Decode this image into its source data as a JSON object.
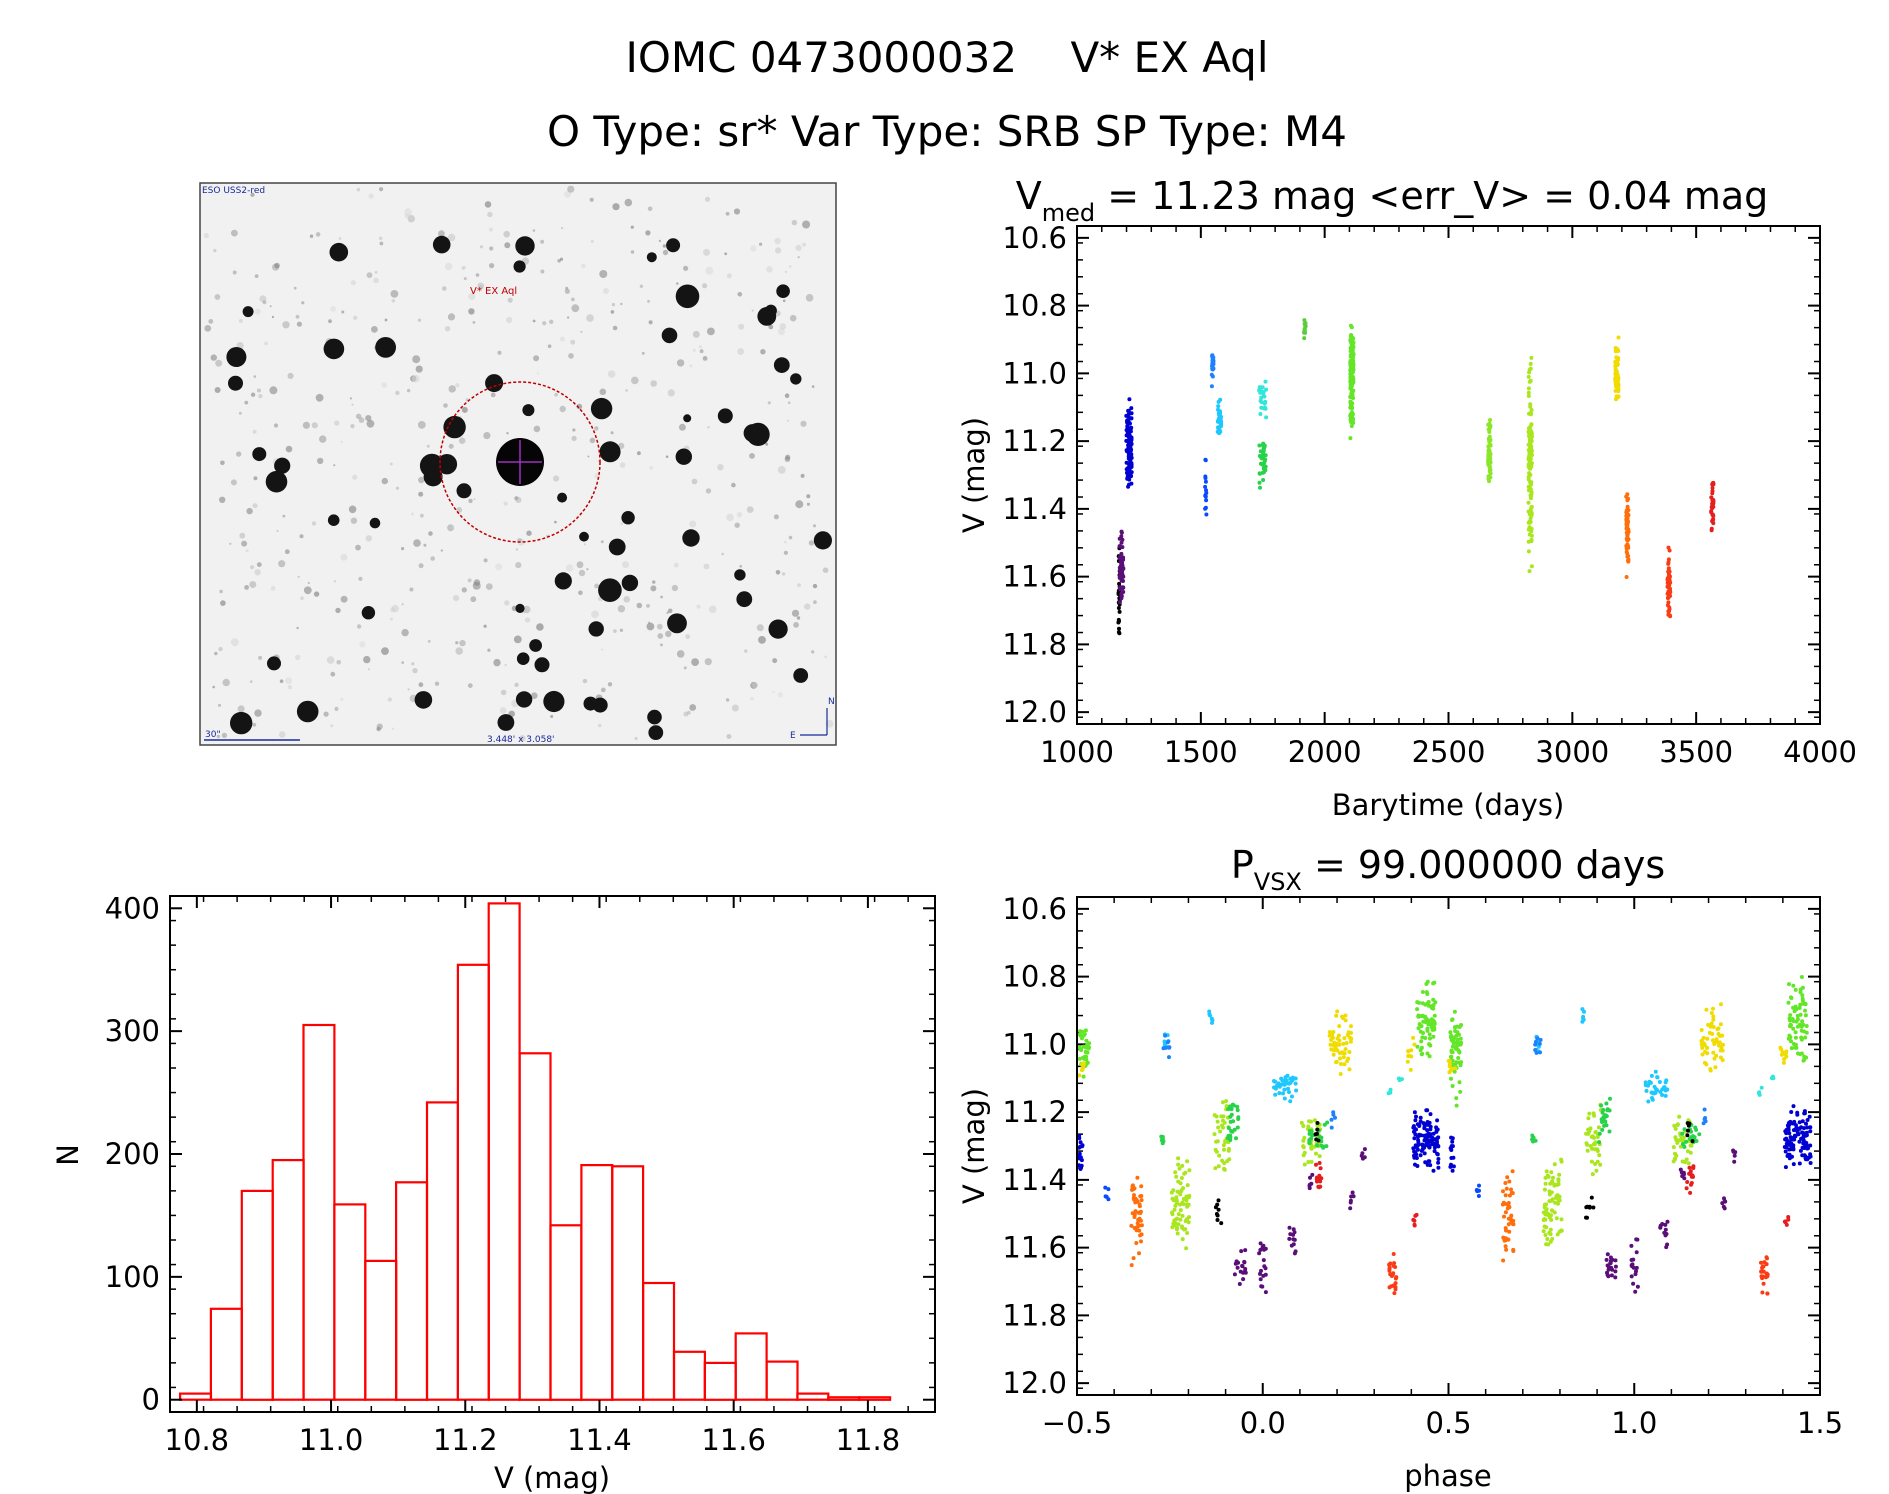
{
  "header": {
    "line1": "IOMC 0473000032    V* EX Aql",
    "line2": "O Type: sr*  Var Type: SRB  SP Type: M4"
  },
  "sky_image": {
    "survey": "ESO USS2-red",
    "target_label": "V* EX Aql",
    "scale_label": "30\"",
    "fov_label": "3.448' x 3.058'",
    "north": "N",
    "east": "E"
  },
  "chart_data": [
    {
      "type": "scatter",
      "id": "light-curve",
      "title_main": "V",
      "title_sub": "med",
      "title_rest": " = 11.23 mag <err_V> = 0.04 mag",
      "xlabel": "Barytime (days)",
      "ylabel": "V (mag)",
      "xlim": [
        1000,
        4000
      ],
      "ylim": [
        12.0,
        10.6
      ],
      "xticks": [
        "1000",
        "1500",
        "2000",
        "2500",
        "3000",
        "3500",
        "4000"
      ],
      "yticks": [
        "10.6",
        "10.8",
        "11.0",
        "11.2",
        "11.4",
        "11.6",
        "11.8",
        "12.0"
      ],
      "series": [
        {
          "name": "black",
          "color": "#000000",
          "x": 1170,
          "width": 6,
          "ymin": 11.45,
          "ymax": 11.84,
          "n": 25
        },
        {
          "name": "purple",
          "color": "#5a0f78",
          "x": 1180,
          "width": 16,
          "ymin": 11.45,
          "ymax": 11.72,
          "n": 60
        },
        {
          "name": "blue-dark",
          "color": "#0000d2",
          "x": 1210,
          "width": 22,
          "ymin": 11.05,
          "ymax": 11.4,
          "n": 120
        },
        {
          "name": "blue-1520",
          "color": "#0a4bff",
          "x": 1520,
          "width": 6,
          "ymin": 11.22,
          "ymax": 11.47,
          "n": 15
        },
        {
          "name": "blue-1550",
          "color": "#1e82ff",
          "x": 1548,
          "width": 8,
          "ymin": 10.9,
          "ymax": 11.05,
          "n": 25
        },
        {
          "name": "cyan-1570",
          "color": "#1ec8ff",
          "x": 1575,
          "width": 14,
          "ymin": 11.07,
          "ymax": 11.2,
          "n": 35
        },
        {
          "name": "cyan-1740",
          "color": "#32e6dc",
          "x": 1750,
          "width": 30,
          "ymin": 10.99,
          "ymax": 11.15,
          "n": 25
        },
        {
          "name": "green-1750",
          "color": "#28d24b",
          "x": 1750,
          "width": 28,
          "ymin": 11.15,
          "ymax": 11.37,
          "n": 40
        },
        {
          "name": "green-1920",
          "color": "#5acd3c",
          "x": 1920,
          "width": 8,
          "ymin": 10.84,
          "ymax": 10.92,
          "n": 12
        },
        {
          "name": "green-2100",
          "color": "#64e628",
          "x": 2110,
          "width": 14,
          "ymin": 10.79,
          "ymax": 11.25,
          "n": 140
        },
        {
          "name": "yg-2660",
          "color": "#8ce628",
          "x": 2665,
          "width": 10,
          "ymin": 11.11,
          "ymax": 11.35,
          "n": 60
        },
        {
          "name": "yg-2830",
          "color": "#aae61e",
          "x": 2830,
          "width": 14,
          "ymin": 10.88,
          "ymax": 11.63,
          "n": 130
        },
        {
          "name": "yellow-3170",
          "color": "#f0dc00",
          "x": 3180,
          "width": 14,
          "ymin": 10.87,
          "ymax": 11.15,
          "n": 70
        },
        {
          "name": "orange-3200",
          "color": "#ff6e0a",
          "x": 3222,
          "width": 10,
          "ymin": 11.29,
          "ymax": 11.65,
          "n": 60
        },
        {
          "name": "orange-red-3390",
          "color": "#fa3c14",
          "x": 3390,
          "width": 12,
          "ymin": 11.48,
          "ymax": 11.77,
          "n": 50
        },
        {
          "name": "red-3560",
          "color": "#e61e1e",
          "x": 3565,
          "width": 10,
          "ymin": 11.3,
          "ymax": 11.48,
          "n": 30
        }
      ]
    },
    {
      "type": "bar",
      "id": "histogram",
      "xlabel": "V (mag)",
      "ylabel": "N",
      "xlim": [
        10.76,
        11.9
      ],
      "ylim": [
        -10,
        410
      ],
      "xticks": [
        "10.8",
        "11.0",
        "11.2",
        "11.4",
        "11.6",
        "11.8"
      ],
      "yticks": [
        "0",
        "100",
        "200",
        "300",
        "400"
      ],
      "bin_start": 10.775,
      "bin_width": 0.046,
      "values": [
        5,
        74,
        170,
        195,
        305,
        159,
        113,
        177,
        242,
        354,
        404,
        282,
        142,
        191,
        190,
        95,
        39,
        30,
        54,
        31,
        5,
        2,
        2
      ],
      "color": "#ff0000"
    },
    {
      "type": "scatter",
      "id": "phase-curve",
      "title_main": "P",
      "title_sub": "VSX",
      "title_rest": " = 99.000000 days",
      "xlabel": "phase",
      "ylabel": "V (mag)",
      "xlim": [
        -0.5,
        1.5
      ],
      "ylim": [
        12.0,
        10.6
      ],
      "xticks": [
        "−0.5",
        "0.0",
        "0.5",
        "1.0",
        "1.5"
      ],
      "yticks": [
        "10.6",
        "10.8",
        "11.0",
        "11.2",
        "11.4",
        "11.6",
        "11.8",
        "12.0"
      ],
      "series": [
        {
          "name": "green-a",
          "color": "#64e628",
          "groups": [
            [
              -0.48,
              0.03,
              10.92,
              11.1,
              35
            ],
            [
              0.44,
              0.05,
              10.79,
              11.06,
              70
            ],
            [
              0.52,
              0.03,
              10.88,
              11.2,
              25
            ]
          ]
        },
        {
          "name": "yellow-a",
          "color": "#f0dc00",
          "groups": [
            [
              0.21,
              0.06,
              10.88,
              11.1,
              55
            ],
            [
              0.4,
              0.02,
              10.98,
              11.1,
              10
            ],
            [
              -0.49,
              0.02,
              11.04,
              11.1,
              8
            ]
          ]
        },
        {
          "name": "blue-a",
          "color": "#0000d2",
          "groups": [
            [
              0.44,
              0.07,
              11.18,
              11.38,
              110
            ],
            [
              -0.49,
              0.01,
              11.25,
              11.38,
              15
            ]
          ]
        },
        {
          "name": "yg-a",
          "color": "#aae61e",
          "groups": [
            [
              -0.22,
              0.05,
              11.32,
              11.62,
              70
            ],
            [
              -0.11,
              0.04,
              11.16,
              11.4,
              40
            ],
            [
              0.13,
              0.05,
              11.18,
              11.37,
              40
            ]
          ]
        },
        {
          "name": "green-b",
          "color": "#28d24b",
          "groups": [
            [
              -0.08,
              0.03,
              11.13,
              11.3,
              25
            ],
            [
              0.15,
              0.05,
              11.22,
              11.31,
              20
            ],
            [
              -0.27,
              0.01,
              11.26,
              11.3,
              6
            ]
          ]
        },
        {
          "name": "cyan-a",
          "color": "#1ec8ff",
          "groups": [
            [
              0.06,
              0.06,
              11.07,
              11.18,
              35
            ],
            [
              -0.26,
              0.01,
              10.96,
              11.04,
              8
            ],
            [
              -0.14,
              0.01,
              10.89,
              10.95,
              6
            ]
          ]
        },
        {
          "name": "cyan-b",
          "color": "#32e6dc",
          "groups": [
            [
              0.34,
              0.01,
              11.12,
              11.16,
              4
            ],
            [
              0.37,
              0.01,
              11.09,
              11.12,
              3
            ]
          ]
        },
        {
          "name": "orange-a",
          "color": "#ff6e0a",
          "groups": [
            [
              -0.34,
              0.03,
              11.35,
              11.67,
              45
            ]
          ]
        },
        {
          "name": "orange-red-a",
          "color": "#fa3c14",
          "groups": [
            [
              0.35,
              0.02,
              11.6,
              11.75,
              25
            ]
          ]
        },
        {
          "name": "red-a",
          "color": "#e61e1e",
          "groups": [
            [
              0.15,
              0.02,
              11.33,
              11.45,
              15
            ],
            [
              0.41,
              0.01,
              11.5,
              11.55,
              6
            ]
          ]
        },
        {
          "name": "purple-a",
          "color": "#5a0f78",
          "groups": [
            [
              -0.06,
              0.03,
              11.6,
              11.72,
              20
            ],
            [
              0.0,
              0.02,
              11.57,
              11.75,
              18
            ],
            [
              0.08,
              0.02,
              11.49,
              11.63,
              12
            ],
            [
              0.24,
              0.01,
              11.43,
              11.5,
              6
            ],
            [
              0.13,
              0.01,
              11.36,
              11.43,
              6
            ],
            [
              0.27,
              0.01,
              11.3,
              11.36,
              5
            ]
          ]
        },
        {
          "name": "blue-b",
          "color": "#0a4bff",
          "groups": [
            [
              -0.42,
              0.01,
              11.41,
              11.47,
              5
            ]
          ]
        },
        {
          "name": "blue-c",
          "color": "#1e82ff",
          "groups": [
            [
              -0.26,
              0.02,
              10.96,
              11.04,
              8
            ],
            [
              0.19,
              0.01,
              11.18,
              11.26,
              5
            ]
          ]
        },
        {
          "name": "black-a",
          "color": "#000000",
          "groups": [
            [
              -0.12,
              0.02,
              11.45,
              11.53,
              8
            ],
            [
              0.15,
              0.02,
              11.22,
              11.3,
              6
            ]
          ]
        }
      ]
    }
  ]
}
